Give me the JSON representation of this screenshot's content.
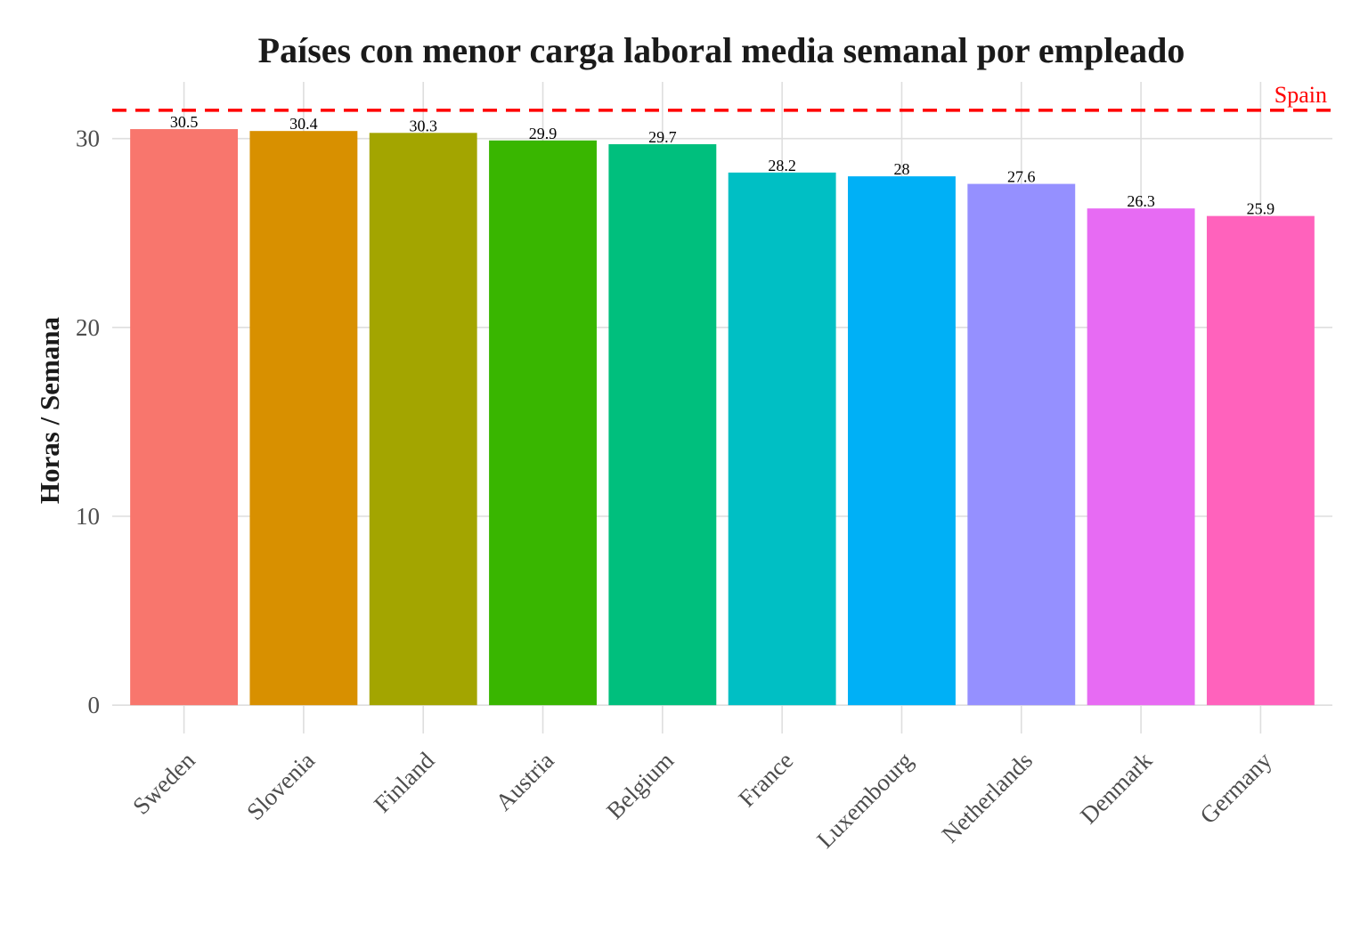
{
  "chart_data": {
    "type": "bar",
    "title": "Países con menor carga laboral media semanal por empleado",
    "xlabel": "",
    "ylabel": "Horas / Semana",
    "categories": [
      "Sweden",
      "Slovenia",
      "Finland",
      "Austria",
      "Belgium",
      "France",
      "Luxembourg",
      "Netherlands",
      "Denmark",
      "Germany"
    ],
    "values": [
      30.5,
      30.4,
      30.3,
      29.9,
      29.7,
      28.2,
      28,
      27.6,
      26.3,
      25.9
    ],
    "value_labels": [
      "30.5",
      "30.4",
      "30.3",
      "29.9",
      "29.7",
      "28.2",
      "28",
      "27.6",
      "26.3",
      "25.9"
    ],
    "colors": [
      "#F8766D",
      "#D89000",
      "#A3A500",
      "#39B600",
      "#00BF7D",
      "#00BFC4",
      "#00B0F6",
      "#9590FF",
      "#E76BF3",
      "#FF62BC"
    ],
    "yticks": [
      0,
      10,
      20,
      30
    ],
    "ytick_labels": [
      "0",
      "10",
      "20",
      "30"
    ],
    "ylim": [
      -1.5,
      33
    ],
    "grid": true,
    "legend": "none",
    "reference_line": {
      "label": "Spain",
      "value": 31.5,
      "color": "#FF0000",
      "style": "dashed"
    }
  }
}
